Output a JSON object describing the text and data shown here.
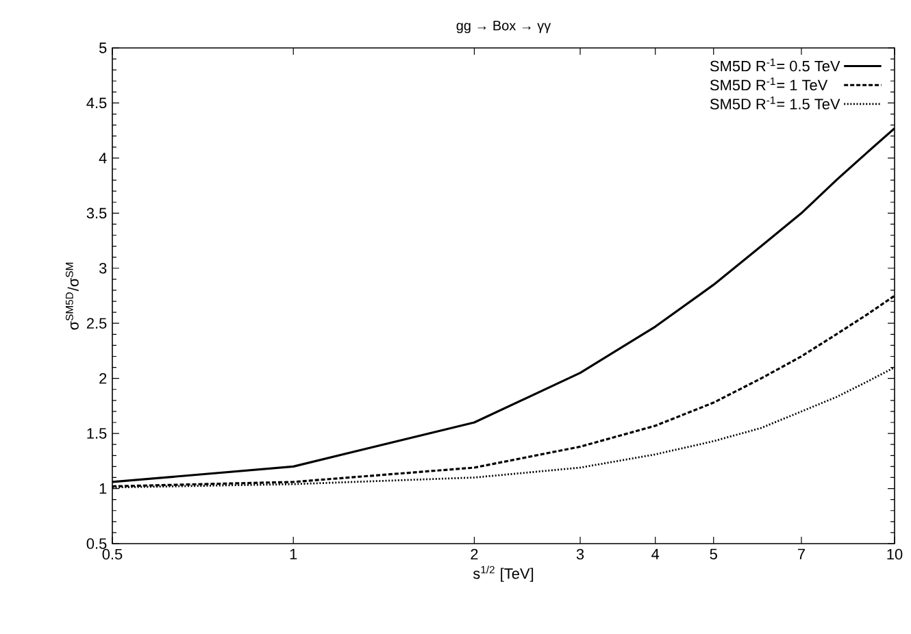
{
  "chart_data": {
    "type": "line",
    "title": "gg → Box → γγ",
    "xlabel": "s$^{1/2}$ [TeV]",
    "ylabel": "σ$^{SM5D}$/σ$^{SM}$",
    "log": "x",
    "xlim": [
      0.5,
      10
    ],
    "ylim": [
      0.5,
      5
    ],
    "xticks": [
      0.5,
      1,
      2,
      3,
      4,
      5,
      7,
      10
    ],
    "yticks": [
      0.5,
      1,
      1.5,
      2,
      2.5,
      3,
      3.5,
      4,
      4.5,
      5
    ],
    "legend": "top right",
    "marker": "none",
    "series": [
      {
        "name": "SM5D R$^{-1}$= 0.5 TeV",
        "color": "#000000",
        "line_style": "solid",
        "x": [
          0.5,
          1,
          2,
          3,
          4,
          5,
          6,
          7,
          8,
          9,
          10
        ],
        "values": [
          1.06,
          1.2,
          1.6,
          2.05,
          2.47,
          2.85,
          3.2,
          3.5,
          3.8,
          4.05,
          4.27
        ]
      },
      {
        "name": "SM5D R$^{-1}$= 1    TeV",
        "color": "#000000",
        "line_style": "dashed",
        "x": [
          0.5,
          1,
          2,
          3,
          4,
          5,
          6,
          7,
          8,
          9,
          10
        ],
        "values": [
          1.02,
          1.06,
          1.19,
          1.38,
          1.57,
          1.78,
          2.0,
          2.2,
          2.4,
          2.58,
          2.75
        ]
      },
      {
        "name": "SM5D R$^{-1}$= 1.5 TeV",
        "color": "#000000",
        "line_style": "dotted",
        "x": [
          0.5,
          1,
          2,
          3,
          4,
          5,
          6,
          7,
          8,
          9,
          10
        ],
        "values": [
          1.01,
          1.04,
          1.1,
          1.19,
          1.31,
          1.43,
          1.55,
          1.7,
          1.83,
          1.97,
          2.1
        ]
      }
    ]
  }
}
